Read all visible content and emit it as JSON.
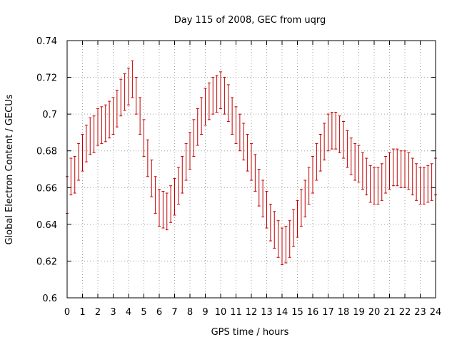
{
  "chart_data": {
    "type": "scatter",
    "title": "Day 115 of 2008, GEC from uqrg",
    "xlabel": "GPS time / hours",
    "ylabel": "Global Electron Content / GECUs",
    "xlim": [
      0,
      24
    ],
    "ylim": [
      0.6,
      0.74
    ],
    "grid": true,
    "x_ticks": [
      "0",
      "1",
      "2",
      "3",
      "4",
      "5",
      "6",
      "7",
      "8",
      "9",
      "10",
      "11",
      "12",
      "13",
      "14",
      "15",
      "16",
      "17",
      "18",
      "19",
      "20",
      "21",
      "22",
      "23",
      "24"
    ],
    "y_ticks": [
      "0.6",
      "0.62",
      "0.64",
      "0.66",
      "0.68",
      "0.7",
      "0.72",
      "0.74"
    ],
    "color": "#c00000",
    "series": [
      {
        "x": [
          0,
          0.25,
          0.5,
          0.75,
          1,
          1.25,
          1.5,
          1.75,
          2,
          2.25,
          2.5,
          2.75,
          3,
          3.25,
          3.5,
          3.75,
          4,
          4.25,
          4.5,
          4.75,
          5,
          5.25,
          5.5,
          5.75,
          6,
          6.25,
          6.5,
          6.75,
          7,
          7.25,
          7.5,
          7.75,
          8,
          8.25,
          8.5,
          8.75,
          9,
          9.25,
          9.5,
          9.75,
          10,
          10.25,
          10.5,
          10.75,
          11,
          11.25,
          11.5,
          11.75,
          12,
          12.25,
          12.5,
          12.75,
          13,
          13.25,
          13.5,
          13.75,
          14,
          14.25,
          14.5,
          14.75,
          15,
          15.25,
          15.5,
          15.75,
          16,
          16.25,
          16.5,
          16.75,
          17,
          17.25,
          17.5,
          17.75,
          18,
          18.25,
          18.5,
          18.75,
          19,
          19.25,
          19.5,
          19.75,
          20,
          20.25,
          20.5,
          20.75,
          21,
          21.25,
          21.5,
          21.75,
          22,
          22.25,
          22.5,
          22.75,
          23,
          23.25,
          23.5,
          23.75,
          24
        ],
        "y": [
          0.656,
          0.666,
          0.667,
          0.674,
          0.679,
          0.684,
          0.688,
          0.689,
          0.693,
          0.694,
          0.695,
          0.697,
          0.699,
          0.703,
          0.709,
          0.712,
          0.715,
          0.719,
          0.71,
          0.699,
          0.687,
          0.676,
          0.665,
          0.656,
          0.649,
          0.648,
          0.647,
          0.651,
          0.655,
          0.661,
          0.667,
          0.674,
          0.68,
          0.687,
          0.693,
          0.699,
          0.704,
          0.707,
          0.71,
          0.711,
          0.713,
          0.71,
          0.706,
          0.699,
          0.694,
          0.69,
          0.685,
          0.679,
          0.674,
          0.668,
          0.66,
          0.654,
          0.648,
          0.641,
          0.637,
          0.632,
          0.628,
          0.629,
          0.632,
          0.638,
          0.643,
          0.649,
          0.654,
          0.661,
          0.667,
          0.674,
          0.679,
          0.685,
          0.69,
          0.691,
          0.691,
          0.689,
          0.686,
          0.681,
          0.677,
          0.674,
          0.673,
          0.669,
          0.666,
          0.662,
          0.661,
          0.661,
          0.663,
          0.667,
          0.669,
          0.671,
          0.671,
          0.67,
          0.67,
          0.669,
          0.666,
          0.663,
          0.661,
          0.661,
          0.662,
          0.663,
          0.666
        ],
        "err": [
          0.01,
          0.01,
          0.01,
          0.01,
          0.01,
          0.01,
          0.01,
          0.01,
          0.01,
          0.01,
          0.01,
          0.01,
          0.01,
          0.01,
          0.01,
          0.01,
          0.01,
          0.01,
          0.01,
          0.01,
          0.01,
          0.01,
          0.01,
          0.01,
          0.01,
          0.01,
          0.01,
          0.01,
          0.01,
          0.01,
          0.01,
          0.01,
          0.01,
          0.01,
          0.01,
          0.01,
          0.01,
          0.01,
          0.01,
          0.01,
          0.01,
          0.01,
          0.01,
          0.01,
          0.01,
          0.01,
          0.01,
          0.01,
          0.01,
          0.01,
          0.01,
          0.01,
          0.01,
          0.01,
          0.01,
          0.01,
          0.01,
          0.01,
          0.01,
          0.01,
          0.01,
          0.01,
          0.01,
          0.01,
          0.01,
          0.01,
          0.01,
          0.01,
          0.01,
          0.01,
          0.01,
          0.01,
          0.01,
          0.01,
          0.01,
          0.01,
          0.01,
          0.01,
          0.01,
          0.01,
          0.01,
          0.01,
          0.01,
          0.01,
          0.01,
          0.01,
          0.01,
          0.01,
          0.01,
          0.01,
          0.01,
          0.01,
          0.01,
          0.01,
          0.01,
          0.01,
          0.01
        ]
      }
    ]
  }
}
